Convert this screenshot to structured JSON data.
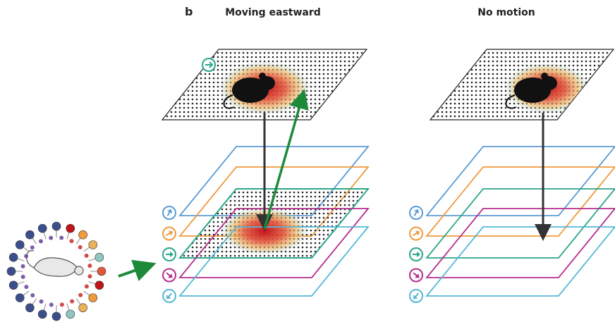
{
  "panel_label": "b",
  "panels": [
    {
      "title": "Moving eastward"
    },
    {
      "title": "No motion"
    }
  ]
}
